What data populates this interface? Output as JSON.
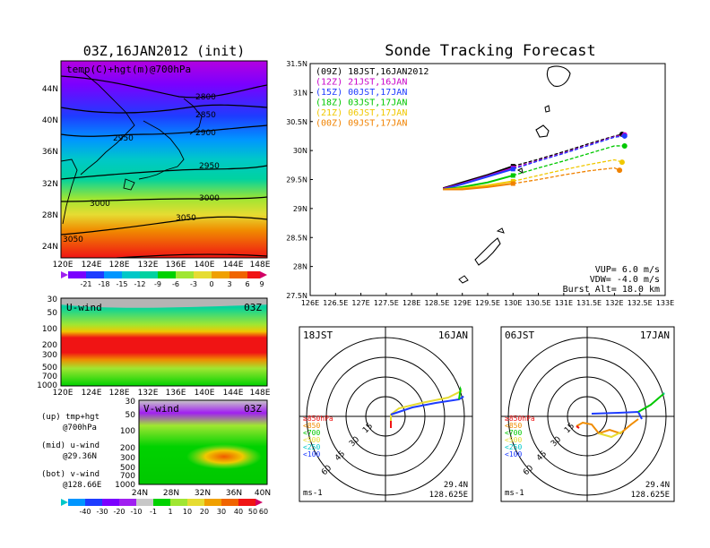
{
  "colors": {
    "violet": "#a020f0",
    "purple": "#7a00ff",
    "blue": "#1e3cff",
    "lightblue": "#0096ff",
    "cyan": "#00c8c8",
    "teal": "#00d2a0",
    "green": "#00d200",
    "lime": "#a0e632",
    "yellow": "#e6dc32",
    "orange": "#f0a000",
    "redorange": "#f06400",
    "red": "#f01414",
    "magenta": "#d20064",
    "grey": "#b4b4b4",
    "track_09z": "#000000",
    "track_12z": "#c800c8",
    "track_15z": "#1e3cff",
    "track_18z": "#00c800",
    "track_21z": "#f0c800",
    "track_00z": "#f08200"
  },
  "left": {
    "title": "03Z,16JAN2012 (init)",
    "panel1": {
      "label": "temp(C)+hgt(m)@700hPa",
      "xticks": [
        "120E",
        "124E",
        "128E",
        "132E",
        "136E",
        "140E",
        "144E",
        "148E"
      ],
      "yticks": [
        "44N",
        "40N",
        "36N",
        "32N",
        "28N",
        "24N"
      ],
      "contours": [
        "2800",
        "2850",
        "2900",
        "2950",
        "2950",
        "3000",
        "3000",
        "3050",
        "3050"
      ],
      "colorbar": [
        "-21",
        "-18",
        "-15",
        "-12",
        "-9",
        "-6",
        "-3",
        "0",
        "3",
        "6",
        "9"
      ]
    },
    "panel2": {
      "label": "U-wind",
      "time": "03Z",
      "xticks": [
        "120E",
        "124E",
        "128E",
        "132E",
        "136E",
        "140E",
        "144E",
        "148E"
      ],
      "yticks": [
        "30",
        "50",
        "100",
        "200",
        "300",
        "500",
        "700",
        "1000"
      ]
    },
    "panel3": {
      "label": "V-wind",
      "time": "03Z",
      "xticks": [
        "24N",
        "28N",
        "32N",
        "36N",
        "40N"
      ],
      "yticks": [
        "30",
        "50",
        "100",
        "200",
        "300",
        "500",
        "700",
        "1000"
      ],
      "colorbar": [
        "-40",
        "-30",
        "-20",
        "-10",
        "-1",
        "1",
        "10",
        "20",
        "30",
        "40",
        "50",
        "60"
      ]
    },
    "notes": [
      [
        "(up) tmp+hgt",
        "@700hPa"
      ],
      [
        "(mid) u-wind",
        "@29.36N"
      ],
      [
        "(bot) v-wind",
        "@128.66E"
      ]
    ]
  },
  "chart_data": {
    "type": "line",
    "title": "Sonde Tracking Forecast",
    "xticks": [
      "126E",
      "126.5E",
      "127E",
      "127.5E",
      "128E",
      "128.5E",
      "129E",
      "129.5E",
      "130E",
      "130.5E",
      "131E",
      "131.5E",
      "132E",
      "132.5E",
      "133E"
    ],
    "yticks": [
      "31.5N",
      "31N",
      "30.5N",
      "30N",
      "29.5N",
      "29N",
      "28.5N",
      "28N",
      "27.5N"
    ],
    "xlim": [
      126,
      133
    ],
    "ylim": [
      27.5,
      31.5
    ],
    "series": [
      {
        "name": "(09Z) 18JST,16JAN2012",
        "color": "#000000",
        "x": [
          128.62,
          129.0,
          129.5,
          130.0,
          130.5,
          131.0,
          131.5,
          132.0,
          132.15
        ],
        "y": [
          29.35,
          29.45,
          29.58,
          29.73,
          29.85,
          29.98,
          30.12,
          30.25,
          30.28
        ]
      },
      {
        "name": "(12Z) 21JST,16JAN",
        "color": "#c800c8",
        "x": [
          128.62,
          129.0,
          129.5,
          130.0,
          130.5,
          131.0,
          131.5,
          132.0,
          132.2
        ],
        "y": [
          29.34,
          29.43,
          29.56,
          29.7,
          29.83,
          29.96,
          30.1,
          30.24,
          30.27
        ]
      },
      {
        "name": "(15Z) 00JST,17JAN",
        "color": "#1e3cff",
        "x": [
          128.62,
          129.0,
          129.5,
          130.0,
          130.5,
          131.0,
          131.5,
          132.0,
          132.2
        ],
        "y": [
          29.33,
          29.42,
          29.55,
          29.68,
          29.82,
          29.95,
          30.09,
          30.23,
          30.25
        ]
      },
      {
        "name": "(18Z) 03JST,17JAN",
        "color": "#00c800",
        "x": [
          128.62,
          129.0,
          129.5,
          130.0,
          130.5,
          131.0,
          131.5,
          132.0,
          132.2
        ],
        "y": [
          29.33,
          29.37,
          29.45,
          29.57,
          29.7,
          29.82,
          29.95,
          30.08,
          30.08
        ]
      },
      {
        "name": "(21Z) 06JST,17JAN",
        "color": "#f0c800",
        "x": [
          128.62,
          129.0,
          129.5,
          130.0,
          130.5,
          131.0,
          131.5,
          132.0,
          132.15
        ],
        "y": [
          29.33,
          29.35,
          29.4,
          29.47,
          29.57,
          29.67,
          29.76,
          29.84,
          29.8
        ]
      },
      {
        "name": "(00Z) 09JST,17JAN",
        "color": "#f08200",
        "x": [
          128.62,
          129.0,
          129.5,
          130.0,
          130.5,
          131.0,
          131.5,
          132.0,
          132.1
        ],
        "y": [
          29.33,
          29.33,
          29.37,
          29.43,
          29.5,
          29.58,
          29.65,
          29.7,
          29.66
        ]
      }
    ],
    "annotations": [
      "VUP= 6.0 m/s",
      "VDW= -4.0 m/s",
      "Burst Alt= 18.0 km"
    ]
  },
  "polar1": {
    "time_label": "18JST",
    "date_label": "16JAN",
    "units": "ms-1",
    "lat": "29.4N",
    "lon": "128.625E",
    "rings": [
      "15",
      "30",
      "45",
      "60"
    ],
    "levels": [
      "≥850hPa",
      "<850",
      "<700",
      "<500",
      "<250",
      "<100"
    ]
  },
  "polar2": {
    "time_label": "06JST",
    "date_label": "17JAN",
    "units": "ms-1",
    "lat": "29.4N",
    "lon": "128.625E",
    "rings": [
      "15",
      "30",
      "45",
      "60"
    ],
    "levels": [
      "≥850hPa",
      "<850",
      "<700",
      "<500",
      "<250",
      "<100"
    ]
  }
}
